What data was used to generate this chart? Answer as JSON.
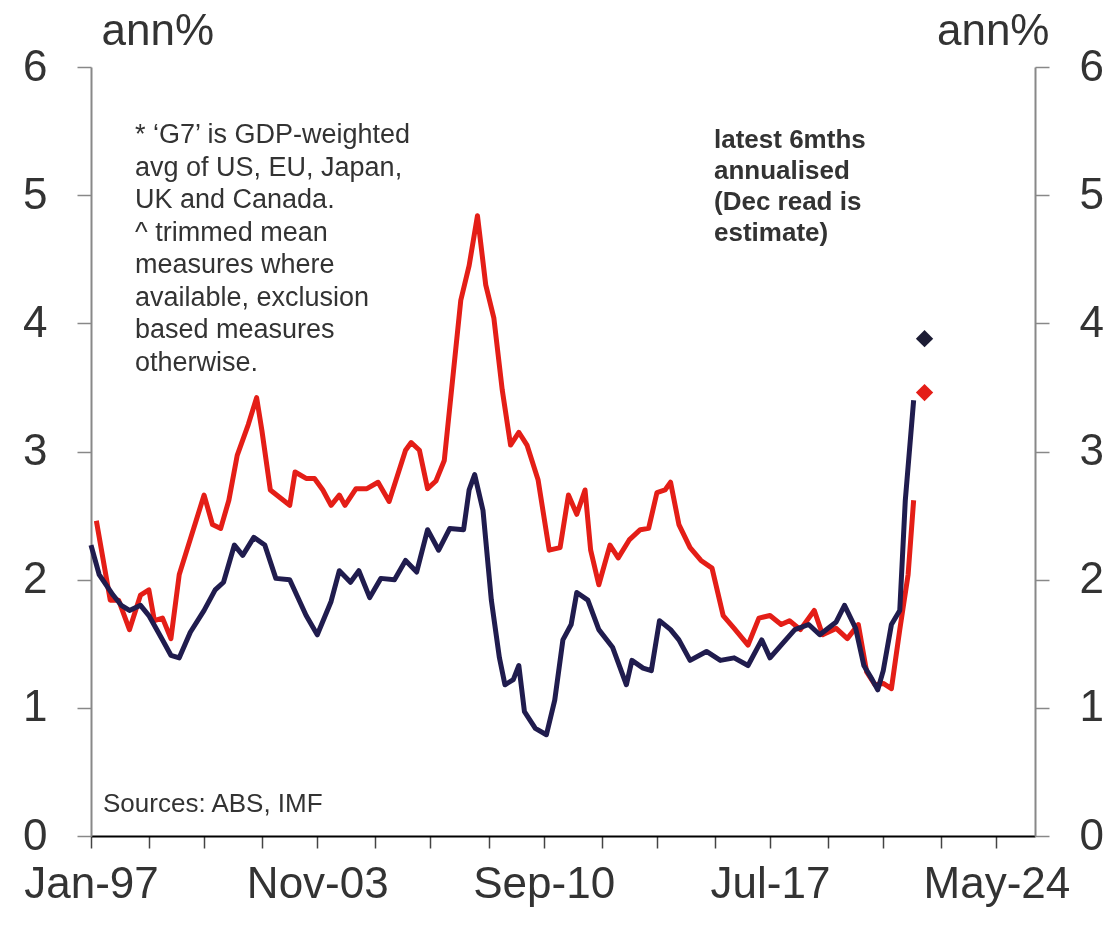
{
  "chart_data": {
    "type": "line",
    "ylabel": "ann%",
    "y2label": "ann%",
    "xlim": [
      "1997-01",
      "2025-07"
    ],
    "xticks": [
      {
        "value": "1997-01",
        "label": "Jan-97"
      },
      {
        "value": "1998-10",
        "label": null
      },
      {
        "value": "2000-06",
        "label": null
      },
      {
        "value": "2002-03",
        "label": null
      },
      {
        "value": "2003-11",
        "label": "Nov-03"
      },
      {
        "value": "2005-08",
        "label": null
      },
      {
        "value": "2007-04",
        "label": null
      },
      {
        "value": "2009-01",
        "label": null
      },
      {
        "value": "2010-09",
        "label": "Sep-10"
      },
      {
        "value": "2012-06",
        "label": null
      },
      {
        "value": "2014-02",
        "label": null
      },
      {
        "value": "2015-11",
        "label": null
      },
      {
        "value": "2017-07",
        "label": "Jul-17"
      },
      {
        "value": "2019-04",
        "label": null
      },
      {
        "value": "2020-12",
        "label": null
      },
      {
        "value": "2022-09",
        "label": null
      },
      {
        "value": "2024-05",
        "label": "May-24"
      }
    ],
    "ylim": [
      0,
      6
    ],
    "yticks": [
      0,
      1,
      2,
      3,
      4,
      5,
      6
    ],
    "y2lim": [
      0,
      6
    ],
    "y2ticks": [
      0,
      1,
      2,
      3,
      4,
      5,
      6
    ],
    "annotations": [
      "* ‘G7’ is GDP-weighted\navg of US, EU, Japan,\nUK and Canada.\n^ trimmed mean\nmeasures where\navailable, exclusion\nbased measures\notherwise.",
      "latest 6mths\nannualised\n(Dec read is\nestimate)",
      "Sources: ABS, IMF"
    ],
    "series": [
      {
        "color": "#e41e17",
        "x": [
          "1997-03",
          "1997-08",
          "1997-11",
          "1998-03",
          "1998-07",
          "1998-10",
          "1998-12",
          "1999-03",
          "1999-06",
          "1999-09",
          "2000-06",
          "2000-09",
          "2000-12",
          "2001-03",
          "2001-06",
          "2001-10",
          "2002-01",
          "2002-03",
          "2002-06",
          "2003-01",
          "2003-03",
          "2003-07",
          "2003-10",
          "2004-01",
          "2004-04",
          "2004-07",
          "2004-09",
          "2005-01",
          "2005-05",
          "2005-09",
          "2006-01",
          "2006-07",
          "2006-09",
          "2006-12",
          "2007-03",
          "2007-06",
          "2007-09",
          "2008-03",
          "2008-06",
          "2008-09",
          "2008-12",
          "2009-03",
          "2009-06",
          "2009-09",
          "2009-12",
          "2010-03",
          "2010-07",
          "2010-11",
          "2011-03",
          "2011-06",
          "2011-09",
          "2011-12",
          "2012-02",
          "2012-05",
          "2012-09",
          "2012-12",
          "2013-04",
          "2013-08",
          "2013-11",
          "2014-02",
          "2014-05",
          "2014-07",
          "2014-10",
          "2015-02",
          "2015-06",
          "2015-10",
          "2016-02",
          "2016-06",
          "2016-11",
          "2017-03",
          "2017-07",
          "2017-11",
          "2018-02",
          "2018-06",
          "2018-11",
          "2019-02",
          "2019-07",
          "2019-11",
          "2020-03",
          "2020-06",
          "2020-09",
          "2020-12",
          "2021-03",
          "2021-06",
          "2021-09",
          "2021-11"
        ],
        "values": [
          2.46,
          1.84,
          1.84,
          1.61,
          1.88,
          1.92,
          1.68,
          1.7,
          1.54,
          2.04,
          2.66,
          2.43,
          2.4,
          2.62,
          2.97,
          3.21,
          3.42,
          3.16,
          2.7,
          2.58,
          2.84,
          2.79,
          2.79,
          2.7,
          2.58,
          2.66,
          2.58,
          2.71,
          2.71,
          2.76,
          2.61,
          3.01,
          3.07,
          3.01,
          2.71,
          2.77,
          2.93,
          4.18,
          4.45,
          4.84,
          4.3,
          4.04,
          3.48,
          3.05,
          3.15,
          3.05,
          2.78,
          2.23,
          2.25,
          2.66,
          2.51,
          2.7,
          2.23,
          1.96,
          2.27,
          2.17,
          2.31,
          2.39,
          2.4,
          2.68,
          2.7,
          2.76,
          2.43,
          2.25,
          2.15,
          2.09,
          1.72,
          1.62,
          1.49,
          1.7,
          1.72,
          1.65,
          1.68,
          1.61,
          1.76,
          1.57,
          1.62,
          1.54,
          1.65,
          1.28,
          1.18,
          1.19,
          1.15,
          1.61,
          2.04,
          2.62
        ]
      },
      {
        "color": "#201c4e",
        "x": [
          "1997-01",
          "1997-04",
          "1997-09",
          "1997-12",
          "1998-03",
          "1998-07",
          "1998-10",
          "1999-03",
          "1999-06",
          "1999-09",
          "2000-01",
          "2000-06",
          "2000-10",
          "2001-01",
          "2001-05",
          "2001-08",
          "2001-12",
          "2002-04",
          "2002-08",
          "2003-01",
          "2003-07",
          "2003-11",
          "2004-04",
          "2004-07",
          "2004-11",
          "2005-02",
          "2005-06",
          "2005-10",
          "2006-03",
          "2006-07",
          "2006-11",
          "2007-03",
          "2007-07",
          "2007-11",
          "2008-04",
          "2008-06",
          "2008-08",
          "2008-11",
          "2009-02",
          "2009-05",
          "2009-07",
          "2009-10",
          "2009-12",
          "2010-02",
          "2010-06",
          "2010-10",
          "2011-01",
          "2011-04",
          "2011-07",
          "2011-09",
          "2012-01",
          "2012-05",
          "2012-10",
          "2013-03",
          "2013-05",
          "2013-09",
          "2013-12",
          "2014-03",
          "2014-07",
          "2014-10",
          "2015-02",
          "2015-08",
          "2016-01",
          "2016-06",
          "2016-11",
          "2017-04",
          "2017-07",
          "2017-11",
          "2018-04",
          "2018-09",
          "2019-01",
          "2019-07",
          "2019-10",
          "2020-02",
          "2020-05",
          "2020-08",
          "2020-10",
          "2020-12",
          "2021-03",
          "2021-06",
          "2021-08",
          "2021-11"
        ],
        "values": [
          2.27,
          2.04,
          1.88,
          1.8,
          1.76,
          1.8,
          1.72,
          1.53,
          1.41,
          1.39,
          1.59,
          1.76,
          1.92,
          1.98,
          2.27,
          2.19,
          2.33,
          2.27,
          2.01,
          2.0,
          1.72,
          1.57,
          1.83,
          2.07,
          1.98,
          2.07,
          1.86,
          2.01,
          2.0,
          2.15,
          2.06,
          2.39,
          2.23,
          2.4,
          2.39,
          2.7,
          2.82,
          2.54,
          1.84,
          1.39,
          1.18,
          1.22,
          1.33,
          0.97,
          0.84,
          0.79,
          1.06,
          1.53,
          1.65,
          1.9,
          1.84,
          1.61,
          1.47,
          1.18,
          1.37,
          1.31,
          1.29,
          1.68,
          1.61,
          1.53,
          1.37,
          1.44,
          1.37,
          1.39,
          1.33,
          1.53,
          1.39,
          1.49,
          1.61,
          1.65,
          1.57,
          1.67,
          1.8,
          1.62,
          1.33,
          1.22,
          1.14,
          1.29,
          1.65,
          1.76,
          2.62,
          3.4
        ]
      },
      {
        "type": "scatter",
        "marker": "diamond",
        "color": "#1c1c34",
        "x": [
          "2022-03"
        ],
        "values": [
          3.88
        ]
      },
      {
        "type": "scatter",
        "marker": "diamond",
        "color": "#e41e17",
        "x": [
          "2022-03"
        ],
        "values": [
          3.46
        ]
      }
    ]
  }
}
